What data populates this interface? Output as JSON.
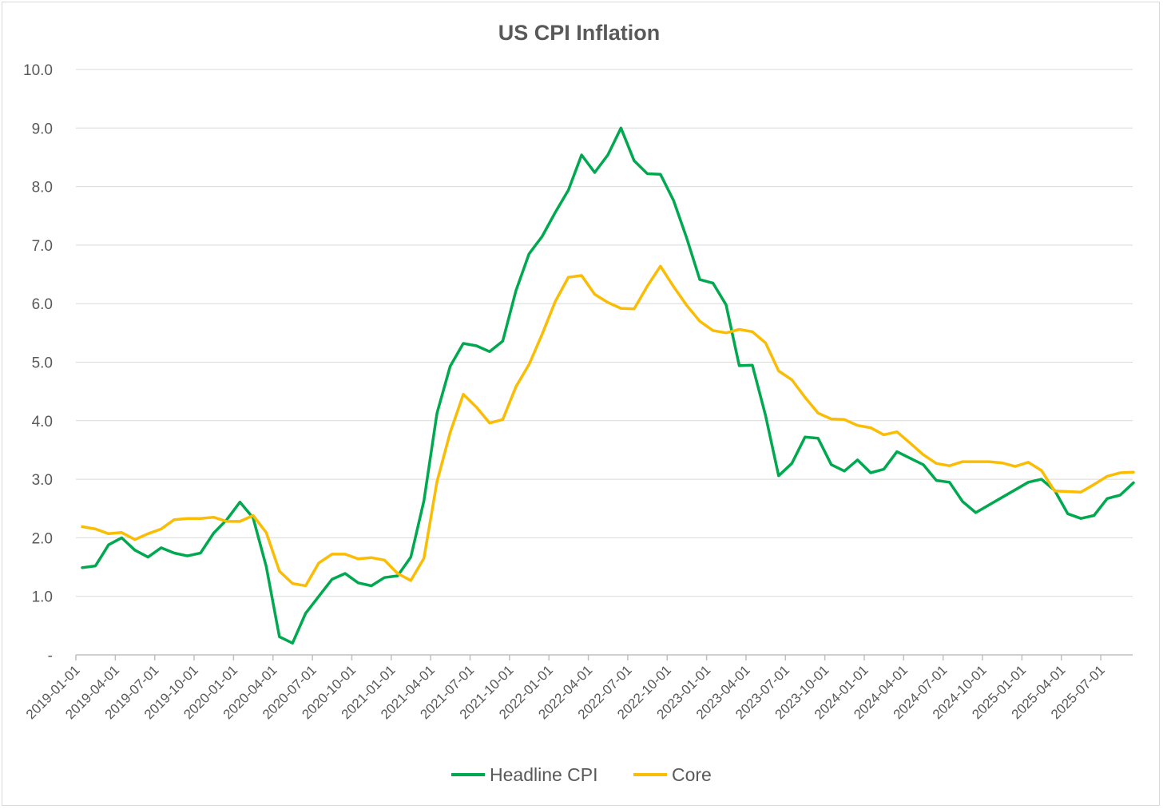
{
  "chart_data": {
    "type": "line",
    "title": "US CPI Inflation",
    "xlabel": "",
    "ylabel": "",
    "ylim": [
      0,
      10
    ],
    "y_ticks": [
      "-",
      "1.0",
      "2.0",
      "3.0",
      "4.0",
      "5.0",
      "6.0",
      "7.0",
      "8.0",
      "9.0",
      "10.0"
    ],
    "x_tick_labels": [
      "2019-01-01",
      "2019-04-01",
      "2019-07-01",
      "2019-10-01",
      "2020-01-01",
      "2020-04-01",
      "2020-07-01",
      "2020-10-01",
      "2021-01-01",
      "2021-04-01",
      "2021-07-01",
      "2021-10-01",
      "2022-01-01",
      "2022-04-01",
      "2022-07-01",
      "2022-10-01",
      "2023-01-01",
      "2023-04-01",
      "2023-07-01",
      "2023-10-01",
      "2024-01-01",
      "2024-04-01",
      "2024-07-01",
      "2024-10-01",
      "2025-01-01",
      "2025-04-01",
      "2025-07-01"
    ],
    "x_start": "2019-01-01",
    "months_per_tick": 3,
    "grid": true,
    "legend_position": "bottom",
    "series": [
      {
        "name": "Headline CPI",
        "color": "#00a94f",
        "values": [
          1.49,
          1.52,
          1.88,
          2.0,
          1.79,
          1.67,
          1.83,
          1.74,
          1.69,
          1.74,
          2.08,
          2.31,
          2.61,
          2.34,
          1.51,
          0.31,
          0.2,
          0.71,
          1.0,
          1.29,
          1.39,
          1.23,
          1.18,
          1.32,
          1.35,
          1.67,
          2.63,
          4.13,
          4.93,
          5.32,
          5.28,
          5.18,
          5.36,
          6.22,
          6.85,
          7.15,
          7.56,
          7.94,
          8.54,
          8.24,
          8.54,
          9.0,
          8.44,
          8.22,
          8.21,
          7.76,
          7.12,
          6.41,
          6.35,
          5.98,
          4.94,
          4.95,
          4.09,
          3.06,
          3.27,
          3.72,
          3.7,
          3.25,
          3.14,
          3.33,
          3.11,
          3.17,
          3.47,
          3.36,
          3.25,
          2.98,
          2.95,
          2.62,
          2.43,
          2.56,
          2.69,
          2.82,
          2.95,
          3.0,
          2.81,
          2.41,
          2.33,
          2.38,
          2.67,
          2.73,
          2.94
        ]
      },
      {
        "name": "Core",
        "color": "#fbbc04",
        "values": [
          2.19,
          2.15,
          2.07,
          2.09,
          1.97,
          2.07,
          2.15,
          2.31,
          2.33,
          2.33,
          2.35,
          2.28,
          2.28,
          2.38,
          2.09,
          1.43,
          1.22,
          1.18,
          1.57,
          1.72,
          1.72,
          1.64,
          1.66,
          1.62,
          1.39,
          1.27,
          1.65,
          2.96,
          3.8,
          4.45,
          4.23,
          3.96,
          4.02,
          4.58,
          4.96,
          5.48,
          6.04,
          6.45,
          6.48,
          6.16,
          6.02,
          5.92,
          5.91,
          6.3,
          6.64,
          6.29,
          5.97,
          5.7,
          5.54,
          5.5,
          5.56,
          5.52,
          5.33,
          4.85,
          4.7,
          4.4,
          4.13,
          4.03,
          4.02,
          3.92,
          3.88,
          3.76,
          3.81,
          3.62,
          3.42,
          3.27,
          3.23,
          3.3,
          3.3,
          3.3,
          3.28,
          3.22,
          3.29,
          3.15,
          2.8,
          2.79,
          2.78,
          2.91,
          3.05,
          3.11,
          3.12
        ]
      }
    ]
  }
}
